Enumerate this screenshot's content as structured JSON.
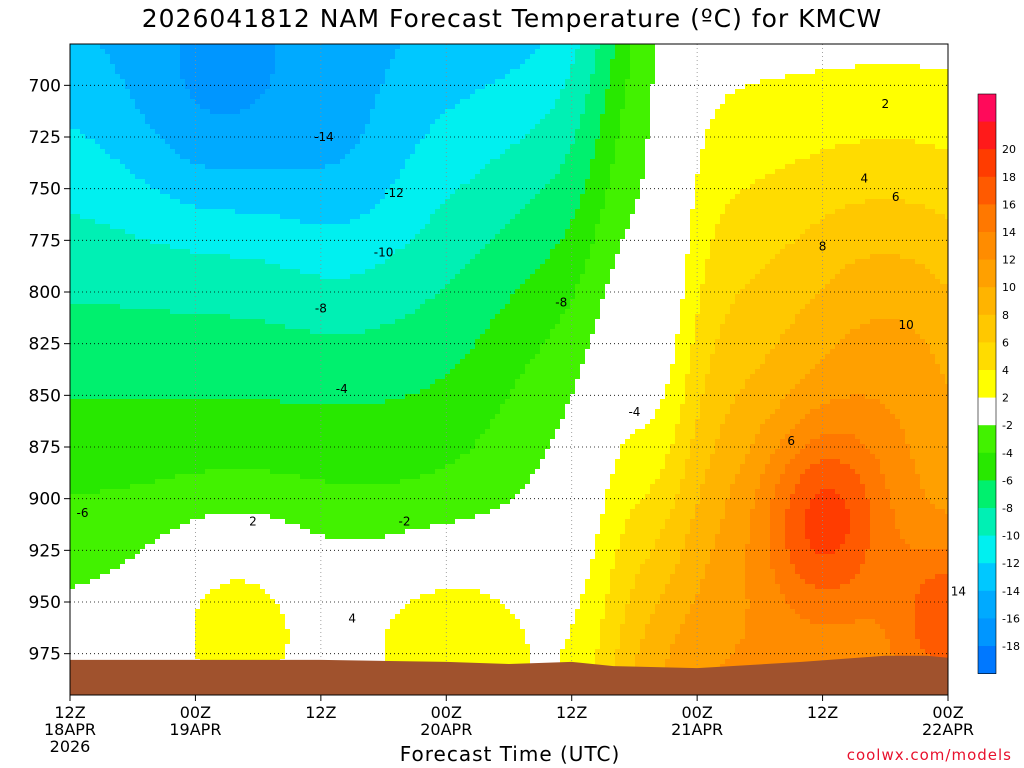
{
  "colors": {
    "ground": "#a0522d",
    "contour_warm": "#000000",
    "contour_zero": "#b4006e",
    "grid": "#8c8c8c"
  },
  "chart_data": {
    "type": "heatmap",
    "title": "2026041812 NAM Forecast Temperature (ºC) for KMCW",
    "xlabel": "Forecast Time (UTC)",
    "ylabel": "",
    "credit": "coolwx.com/models",
    "y_axis": {
      "reverse": true,
      "ylim": [
        995,
        680
      ],
      "ticks": [
        700,
        725,
        750,
        775,
        800,
        825,
        850,
        875,
        900,
        925,
        950,
        975
      ]
    },
    "x_axis": {
      "xlim": [
        0,
        84
      ],
      "ticks": [
        {
          "x": 0,
          "line1": "12Z",
          "line2": "18APR",
          "line3": "2026"
        },
        {
          "x": 12,
          "line1": "00Z",
          "line2": "19APR",
          "line3": ""
        },
        {
          "x": 24,
          "line1": "12Z",
          "line2": "",
          "line3": ""
        },
        {
          "x": 36,
          "line1": "00Z",
          "line2": "20APR",
          "line3": ""
        },
        {
          "x": 48,
          "line1": "12Z",
          "line2": "",
          "line3": ""
        },
        {
          "x": 60,
          "line1": "00Z",
          "line2": "21APR",
          "line3": ""
        },
        {
          "x": 72,
          "line1": "12Z",
          "line2": "",
          "line3": ""
        },
        {
          "x": 84,
          "line1": "00Z",
          "line2": "22APR",
          "line3": ""
        }
      ]
    },
    "colorbar": [
      {
        "label": "",
        "color": "#ff0a5a"
      },
      {
        "label": "20",
        "color": "#ff1a1a"
      },
      {
        "label": "18",
        "color": "#ff3c00"
      },
      {
        "label": "16",
        "color": "#ff5a00"
      },
      {
        "label": "14",
        "color": "#ff7800"
      },
      {
        "label": "12",
        "color": "#ff8c00"
      },
      {
        "label": "10",
        "color": "#ffa000"
      },
      {
        "label": "8",
        "color": "#ffb400"
      },
      {
        "label": "6",
        "color": "#ffc800"
      },
      {
        "label": "4",
        "color": "#ffdc00"
      },
      {
        "label": "2",
        "color": "#ffff00"
      },
      {
        "label": "-2",
        "color": "#ffffff"
      },
      {
        "label": "-4",
        "color": "#42f200"
      },
      {
        "label": "-6",
        "color": "#28e800"
      },
      {
        "label": "-8",
        "color": "#00f06e"
      },
      {
        "label": "-10",
        "color": "#00f0b4"
      },
      {
        "label": "-12",
        "color": "#00f0f0"
      },
      {
        "label": "-14",
        "color": "#00c8ff"
      },
      {
        "label": "-16",
        "color": "#00aaff"
      },
      {
        "label": "-18",
        "color": "#0096ff"
      },
      {
        "label": "",
        "color": "#0078ff"
      }
    ],
    "ground_p": [
      978,
      978,
      978,
      979,
      980,
      979,
      981,
      982,
      979,
      976,
      976,
      977
    ],
    "ground_t": [
      0,
      12,
      24,
      36,
      42,
      48,
      52,
      60,
      70,
      78,
      82,
      84
    ],
    "contour_labels": [
      {
        "t": 24.3,
        "p": 725,
        "v": "-14"
      },
      {
        "t": 31.0,
        "p": 752,
        "v": "-12"
      },
      {
        "t": 30.0,
        "p": 781,
        "v": "-10"
      },
      {
        "t": 24.0,
        "p": 808,
        "v": "-8"
      },
      {
        "t": 47.0,
        "p": 805,
        "v": "-8"
      },
      {
        "t": 26.0,
        "p": 847,
        "v": "-4"
      },
      {
        "t": 54.0,
        "p": 858,
        "v": "-4"
      },
      {
        "t": 1.2,
        "p": 907,
        "v": "-6"
      },
      {
        "t": 32.0,
        "p": 911,
        "v": "-2"
      },
      {
        "t": 17.5,
        "p": 911,
        "v": "2"
      },
      {
        "t": 27.0,
        "p": 958,
        "v": "4"
      },
      {
        "t": 78.0,
        "p": 709,
        "v": "2"
      },
      {
        "t": 76.0,
        "p": 745,
        "v": "4"
      },
      {
        "t": 79.0,
        "p": 754,
        "v": "6"
      },
      {
        "t": 72.0,
        "p": 778,
        "v": "8"
      },
      {
        "t": 80.0,
        "p": 816,
        "v": "10"
      },
      {
        "t": 69.0,
        "p": 872,
        "v": "6"
      },
      {
        "t": 85.0,
        "p": 945,
        "v": "14"
      }
    ]
  }
}
